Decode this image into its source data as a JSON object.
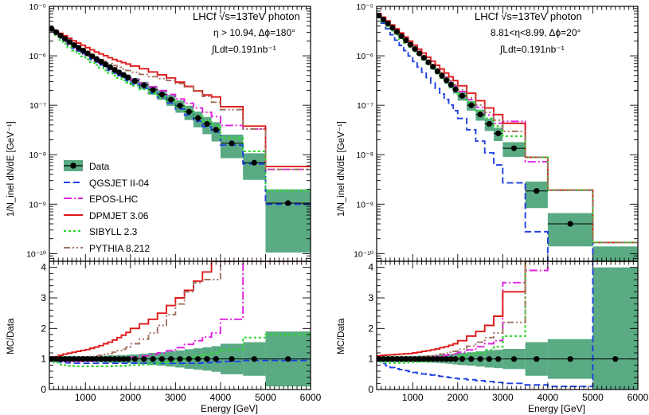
{
  "colors": {
    "data": "#000000",
    "data_band": "#5aab84",
    "qgsjet": "#1f3fe0",
    "epos": "#e020e0",
    "dpmjet": "#e01818",
    "sibyll": "#30d830",
    "pythia": "#a07060"
  },
  "legend": {
    "data": "Data",
    "qgsjet": "QGSJET II-04",
    "epos": "EPOS-LHC",
    "dpmjet": "DPMJET 3.06",
    "sibyll": "SIBYLL 2.3",
    "pythia": "PYTHIA 8.212"
  },
  "chart_data": [
    {
      "type": "line",
      "panel": "left",
      "title_line1": "LHCf √s=13TeV photon",
      "title_line2": "η > 10.94, Δϕ=180°",
      "title_line3": "∫Ldt=0.191nb⁻¹",
      "xlabel": "Energy [GeV]",
      "ylabel_top": "1/N_inel dN/dE [GeV⁻¹]",
      "ylabel_bottom": "MC/Data",
      "xlim": [
        200,
        6000
      ],
      "ylim_top": [
        7e-11,
        1e-05
      ],
      "ylim_bottom": [
        0,
        4.2
      ],
      "x_ticks": [
        "1000",
        "2000",
        "3000",
        "4000",
        "5000",
        "6000"
      ],
      "y_ticks_top": [
        "10⁻¹⁰",
        "10⁻⁹",
        "10⁻⁸",
        "10⁻⁷",
        "10⁻⁶",
        "10⁻⁵"
      ],
      "y_ticks_bottom": [
        "0",
        "1",
        "2",
        "3",
        "4"
      ],
      "legend_position": "left-middle",
      "edges": [
        200,
        300,
        400,
        500,
        600,
        700,
        800,
        900,
        1000,
        1100,
        1200,
        1300,
        1400,
        1500,
        1600,
        1700,
        1800,
        1900,
        2000,
        2200,
        2400,
        2600,
        2800,
        3000,
        3200,
        3400,
        3600,
        3800,
        4000,
        4500,
        5000,
        6000
      ],
      "data": {
        "x": [
          250,
          350,
          450,
          550,
          650,
          750,
          850,
          950,
          1050,
          1150,
          1250,
          1350,
          1450,
          1550,
          1650,
          1750,
          1850,
          1950,
          2100,
          2300,
          2500,
          2700,
          2900,
          3100,
          3300,
          3500,
          3700,
          3900,
          4250,
          4750,
          5500
        ],
        "y": [
          3.5e-06,
          3e-06,
          2.55e-06,
          2.2e-06,
          1.9e-06,
          1.65e-06,
          1.45e-06,
          1.28e-06,
          1.12e-06,
          9.8e-07,
          8.6e-07,
          7.6e-07,
          6.7e-07,
          5.9e-07,
          5.2e-07,
          4.6e-07,
          4.1e-07,
          3.65e-07,
          3.1e-07,
          2.55e-07,
          2.05e-07,
          1.65e-07,
          1.3e-07,
          9.8e-08,
          7.4e-08,
          5.5e-08,
          4.2e-08,
          3.2e-08,
          1.7e-08,
          6.9e-09,
          1.05e-09
        ],
        "err_frac": [
          0.1,
          0.1,
          0.1,
          0.1,
          0.1,
          0.1,
          0.1,
          0.1,
          0.1,
          0.1,
          0.1,
          0.11,
          0.11,
          0.12,
          0.12,
          0.13,
          0.13,
          0.14,
          0.15,
          0.17,
          0.2,
          0.22,
          0.25,
          0.28,
          0.32,
          0.35,
          0.38,
          0.42,
          0.5,
          0.55,
          0.9
        ]
      },
      "series": [
        {
          "key": "qgsjet",
          "dash": "8,4",
          "ratio": [
            1.0,
            0.95,
            0.9,
            0.88,
            0.87,
            0.86,
            0.86,
            0.86,
            0.86,
            0.86,
            0.86,
            0.86,
            0.86,
            0.86,
            0.86,
            0.86,
            0.86,
            0.86,
            0.86,
            0.86,
            0.86,
            0.86,
            0.86,
            0.86,
            0.86,
            0.86,
            0.88,
            0.9,
            0.92,
            0.95,
            0.95
          ]
        },
        {
          "key": "epos",
          "dash": "10,3,2,3",
          "ratio": [
            1.0,
            0.97,
            0.95,
            0.93,
            0.92,
            0.92,
            0.92,
            0.92,
            0.93,
            0.93,
            0.94,
            0.95,
            0.96,
            0.97,
            0.98,
            1.0,
            1.02,
            1.03,
            1.06,
            1.1,
            1.15,
            1.2,
            1.27,
            1.37,
            1.48,
            1.6,
            1.72,
            1.85,
            2.3,
            4.8,
            4.8
          ]
        },
        {
          "key": "dpmjet",
          "dash": "",
          "ratio": [
            1.0,
            1.07,
            1.12,
            1.16,
            1.19,
            1.22,
            1.25,
            1.28,
            1.31,
            1.35,
            1.39,
            1.44,
            1.5,
            1.55,
            1.62,
            1.7,
            1.78,
            1.87,
            2.0,
            2.15,
            2.3,
            2.5,
            2.75,
            3.0,
            3.25,
            3.55,
            3.85,
            4.6,
            5.5,
            5.5,
            5.5
          ]
        },
        {
          "key": "sibyll",
          "dash": "3,3",
          "ratio": [
            0.95,
            0.88,
            0.82,
            0.8,
            0.78,
            0.77,
            0.76,
            0.76,
            0.76,
            0.76,
            0.76,
            0.76,
            0.76,
            0.76,
            0.77,
            0.77,
            0.78,
            0.79,
            0.8,
            0.82,
            0.85,
            0.88,
            0.92,
            0.97,
            1.03,
            1.1,
            1.15,
            1.2,
            1.3,
            1.7,
            1.8
          ]
        },
        {
          "key": "pythia",
          "dash": "8,3,2,3,2,3",
          "ratio": [
            1.0,
            1.02,
            1.03,
            1.03,
            1.04,
            1.04,
            1.05,
            1.06,
            1.07,
            1.08,
            1.1,
            1.12,
            1.15,
            1.18,
            1.22,
            1.27,
            1.32,
            1.38,
            1.5,
            1.65,
            1.85,
            2.1,
            2.45,
            2.8,
            3.2,
            3.5,
            3.6,
            3.6,
            4.8,
            4.8,
            4.8
          ]
        }
      ]
    },
    {
      "type": "line",
      "panel": "right",
      "title_line1": "LHCf √s=13TeV photon",
      "title_line2": "8.81<η<8.99, Δϕ=20°",
      "title_line3": "∫Ldt=0.191nb⁻¹",
      "xlabel": "Energy [GeV]",
      "ylabel_top": "1/N_inel dN/dE [GeV⁻¹]",
      "ylabel_bottom": "MC/Data",
      "xlim": [
        200,
        6000
      ],
      "ylim_top": [
        7e-11,
        1e-05
      ],
      "ylim_bottom": [
        0,
        4.2
      ],
      "x_ticks": [
        "1000",
        "2000",
        "3000",
        "4000",
        "5000",
        "6000"
      ],
      "y_ticks_top": [
        "10⁻¹⁰",
        "10⁻⁹",
        "10⁻⁸",
        "10⁻⁷",
        "10⁻⁶",
        "10⁻⁵"
      ],
      "y_ticks_bottom": [
        "0",
        "1",
        "2",
        "3",
        "4"
      ],
      "edges": [
        200,
        300,
        400,
        500,
        600,
        700,
        800,
        900,
        1000,
        1100,
        1200,
        1300,
        1400,
        1500,
        1600,
        1700,
        1800,
        1900,
        2000,
        2200,
        2400,
        2600,
        2800,
        3000,
        3500,
        4000,
        5000,
        6000
      ],
      "data": {
        "x": [
          250,
          350,
          450,
          550,
          650,
          750,
          850,
          950,
          1050,
          1150,
          1250,
          1350,
          1450,
          1550,
          1650,
          1750,
          1850,
          1950,
          2100,
          2300,
          2500,
          2700,
          2900,
          3250,
          3750,
          4500,
          5500
        ],
        "y": [
          6.5e-06,
          5.4e-06,
          4.5e-06,
          3.7e-06,
          3.05e-06,
          2.5e-06,
          2.05e-06,
          1.68e-06,
          1.37e-06,
          1.12e-06,
          9.1e-07,
          7.4e-07,
          6e-07,
          4.85e-07,
          3.95e-07,
          3.2e-07,
          2.6e-07,
          2.1e-07,
          1.55e-07,
          1e-07,
          6.5e-08,
          4.2e-08,
          2.7e-08,
          1.35e-08,
          1.85e-09,
          4e-10,
          3.5e-11
        ],
        "err_frac": [
          0.1,
          0.1,
          0.1,
          0.1,
          0.1,
          0.1,
          0.1,
          0.1,
          0.1,
          0.11,
          0.11,
          0.12,
          0.12,
          0.13,
          0.14,
          0.15,
          0.16,
          0.18,
          0.2,
          0.22,
          0.25,
          0.28,
          0.3,
          0.33,
          0.55,
          0.65,
          3.0
        ]
      },
      "series": [
        {
          "key": "qgsjet",
          "dash": "8,4",
          "ratio": [
            0.95,
            0.85,
            0.78,
            0.72,
            0.68,
            0.65,
            0.62,
            0.59,
            0.56,
            0.53,
            0.51,
            0.49,
            0.47,
            0.45,
            0.43,
            0.41,
            0.39,
            0.37,
            0.35,
            0.32,
            0.29,
            0.26,
            0.23,
            0.2,
            0.15,
            0.1,
            4.8
          ]
        },
        {
          "key": "epos",
          "dash": "10,3,2,3",
          "ratio": [
            1.0,
            0.98,
            0.97,
            0.96,
            0.96,
            0.96,
            0.97,
            0.98,
            0.99,
            1.0,
            1.02,
            1.04,
            1.06,
            1.08,
            1.1,
            1.12,
            1.15,
            1.18,
            1.22,
            1.3,
            1.4,
            1.5,
            1.6,
            3.5,
            3.9,
            4.8,
            4.8
          ]
        },
        {
          "key": "dpmjet",
          "dash": "",
          "ratio": [
            1.1,
            1.12,
            1.13,
            1.14,
            1.15,
            1.16,
            1.17,
            1.18,
            1.2,
            1.22,
            1.25,
            1.27,
            1.3,
            1.33,
            1.37,
            1.4,
            1.45,
            1.5,
            1.6,
            1.75,
            1.9,
            2.1,
            2.4,
            3.2,
            4.8,
            4.8,
            4.8
          ]
        },
        {
          "key": "sibyll",
          "dash": "3,3",
          "ratio": [
            0.95,
            0.9,
            0.88,
            0.87,
            0.87,
            0.87,
            0.88,
            0.89,
            0.9,
            0.91,
            0.92,
            0.93,
            0.95,
            0.97,
            0.99,
            1.01,
            1.03,
            1.05,
            1.1,
            1.15,
            1.2,
            1.3,
            1.4,
            1.75,
            4.8,
            4.8,
            4.8
          ]
        },
        {
          "key": "pythia",
          "dash": "8,3,2,3,2,3",
          "ratio": [
            1.0,
            1.0,
            1.0,
            1.0,
            1.0,
            1.01,
            1.02,
            1.03,
            1.04,
            1.05,
            1.07,
            1.09,
            1.11,
            1.13,
            1.16,
            1.19,
            1.22,
            1.25,
            1.32,
            1.42,
            1.55,
            1.7,
            1.85,
            2.2,
            4.8,
            4.8,
            4.8
          ]
        }
      ]
    }
  ]
}
